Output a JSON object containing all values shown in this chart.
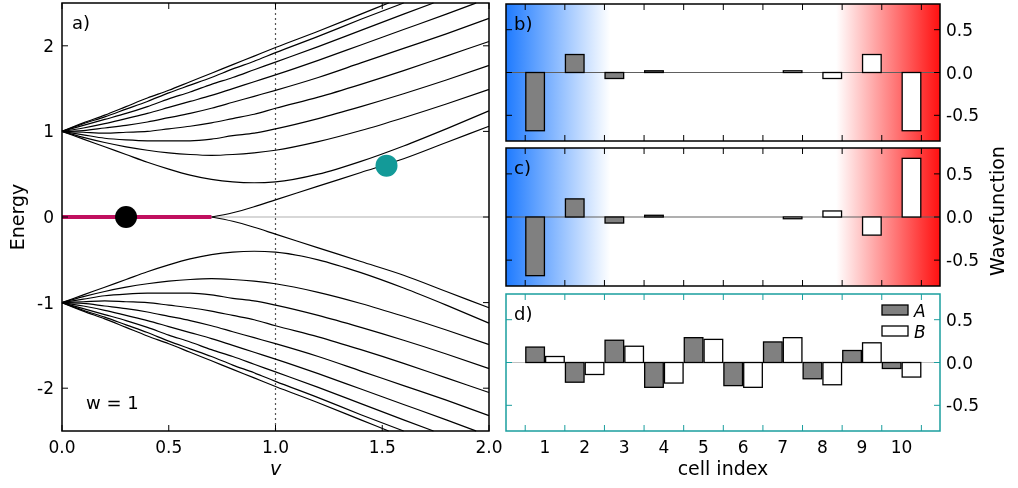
{
  "chart_data": [
    {
      "type": "line",
      "xlabel": "v",
      "ylabel": "Energy",
      "annotations": [
        "a)",
        "w = 1"
      ],
      "xlim": [
        0,
        2
      ],
      "xticks": [
        {
          "value": 0,
          "label": "0.0"
        },
        {
          "value": 0.5,
          "label": "0.5"
        },
        {
          "value": 1,
          "label": "1.0"
        },
        {
          "value": 1.5,
          "label": "1.5"
        },
        {
          "value": 2,
          "label": "2.0"
        }
      ],
      "ylim": [
        -2.5,
        2.5
      ],
      "yticks": [
        -2,
        -1,
        0,
        1,
        2
      ],
      "line_style": "solid",
      "ref_lines": [
        {
          "axis": "y",
          "value": 0,
          "color": "#b0b0b0"
        },
        {
          "axis": "x",
          "value": 1,
          "color": "#555555",
          "line_style": "dotted"
        }
      ],
      "series": [
        {
          "color": "#000000",
          "x": [
            0,
            0.1,
            0.2,
            0.3,
            0.4,
            0.5,
            0.6,
            0.7,
            0.8,
            0.9,
            1,
            1.2,
            1.4,
            1.53
          ],
          "values": [
            1,
            1.1,
            1.19,
            1.29,
            1.39,
            1.48,
            1.58,
            1.68,
            1.78,
            1.88,
            1.98,
            2.17,
            2.37,
            2.5
          ]
        },
        {
          "color": "#000000",
          "x": [
            0,
            0.1,
            0.2,
            0.3,
            0.4,
            0.5,
            0.6,
            0.7,
            0.8,
            0.9,
            1,
            1.2,
            1.4,
            1.6
          ],
          "values": [
            1,
            1.09,
            1.17,
            1.26,
            1.35,
            1.45,
            1.54,
            1.63,
            1.73,
            1.82,
            1.92,
            2.11,
            2.31,
            2.5
          ]
        },
        {
          "color": "#000000",
          "x": [
            0,
            0.1,
            0.2,
            0.3,
            0.4,
            0.5,
            0.6,
            0.7,
            0.8,
            0.9,
            1,
            1.2,
            1.4,
            1.6,
            1.74
          ],
          "values": [
            1,
            1.07,
            1.14,
            1.21,
            1.29,
            1.38,
            1.46,
            1.55,
            1.63,
            1.72,
            1.81,
            1.99,
            2.18,
            2.37,
            2.5
          ]
        },
        {
          "color": "#000000",
          "x": [
            0,
            0.1,
            0.2,
            0.3,
            0.4,
            0.5,
            0.6,
            0.7,
            0.8,
            0.9,
            1,
            1.2,
            1.4,
            1.6,
            1.8,
            1.94
          ],
          "values": [
            1,
            1.04,
            1.09,
            1.15,
            1.21,
            1.28,
            1.35,
            1.42,
            1.5,
            1.58,
            1.66,
            1.83,
            2.01,
            2.19,
            2.37,
            2.5
          ]
        },
        {
          "color": "#000000",
          "x": [
            0,
            0.1,
            0.2,
            0.3,
            0.4,
            0.5,
            0.6,
            0.7,
            0.8,
            0.9,
            1,
            1.2,
            1.4,
            1.6,
            1.8,
            2
          ],
          "values": [
            1,
            1.01,
            1.04,
            1.07,
            1.11,
            1.16,
            1.21,
            1.27,
            1.34,
            1.41,
            1.48,
            1.63,
            1.8,
            1.97,
            2.14,
            2.32
          ]
        },
        {
          "color": "#000000",
          "x": [
            0,
            0.1,
            0.2,
            0.3,
            0.4,
            0.5,
            0.6,
            0.7,
            0.8,
            0.9,
            1,
            1.2,
            1.4,
            1.6,
            1.8,
            2
          ],
          "values": [
            1,
            0.99,
            0.98,
            0.99,
            1,
            1.03,
            1.06,
            1.1,
            1.15,
            1.2,
            1.27,
            1.4,
            1.55,
            1.71,
            1.88,
            2.05
          ]
        },
        {
          "color": "#000000",
          "x": [
            0,
            0.1,
            0.2,
            0.3,
            0.4,
            0.5,
            0.6,
            0.7,
            0.8,
            0.9,
            1,
            1.2,
            1.4,
            1.6,
            1.8,
            2
          ],
          "values": [
            1,
            0.96,
            0.92,
            0.9,
            0.89,
            0.89,
            0.89,
            0.91,
            0.95,
            0.98,
            1.03,
            1.15,
            1.29,
            1.44,
            1.6,
            1.77
          ]
        },
        {
          "color": "#000000",
          "x": [
            0,
            0.1,
            0.2,
            0.3,
            0.4,
            0.5,
            0.6,
            0.7,
            0.8,
            0.9,
            1,
            1.2,
            1.4,
            1.6,
            1.8,
            2
          ],
          "values": [
            1,
            0.93,
            0.87,
            0.82,
            0.78,
            0.75,
            0.73,
            0.72,
            0.73,
            0.75,
            0.78,
            0.88,
            1.01,
            1.16,
            1.32,
            1.49
          ]
        },
        {
          "color": "#000000",
          "x": [
            0,
            0.1,
            0.2,
            0.3,
            0.4,
            0.5,
            0.6,
            0.7,
            0.8,
            0.9,
            1,
            1.2,
            1.4,
            1.6,
            1.8,
            2
          ],
          "values": [
            1,
            0.91,
            0.82,
            0.73,
            0.64,
            0.56,
            0.49,
            0.44,
            0.41,
            0.4,
            0.41,
            0.5,
            0.65,
            0.83,
            1.03,
            1.24
          ]
        },
        {
          "color": "#000000",
          "x": [
            0.7,
            0.8,
            0.9,
            1,
            1.2,
            1.4,
            1.6,
            1.8,
            2
          ],
          "values": [
            0,
            0.05,
            0.12,
            0.2,
            0.36,
            0.52,
            0.68,
            0.87,
            1.06
          ]
        },
        {
          "color": "#000000",
          "x": [
            0.7,
            0.8,
            0.9,
            1,
            1.2,
            1.4,
            1.6,
            1.8,
            2
          ],
          "values": [
            0,
            -0.05,
            -0.12,
            -0.2,
            -0.36,
            -0.52,
            -0.68,
            -0.87,
            -1.06
          ]
        },
        {
          "color": "#000000",
          "x": [
            0,
            0.1,
            0.2,
            0.3,
            0.4,
            0.5,
            0.6,
            0.7,
            0.8,
            0.9,
            1,
            1.2,
            1.4,
            1.6,
            1.8,
            2
          ],
          "values": [
            -1,
            -0.91,
            -0.82,
            -0.73,
            -0.64,
            -0.56,
            -0.49,
            -0.44,
            -0.41,
            -0.4,
            -0.41,
            -0.5,
            -0.65,
            -0.83,
            -1.03,
            -1.24
          ]
        },
        {
          "color": "#000000",
          "x": [
            0,
            0.1,
            0.2,
            0.3,
            0.4,
            0.5,
            0.6,
            0.7,
            0.8,
            0.9,
            1,
            1.2,
            1.4,
            1.6,
            1.8,
            2
          ],
          "values": [
            -1,
            -0.93,
            -0.87,
            -0.82,
            -0.78,
            -0.75,
            -0.73,
            -0.72,
            -0.73,
            -0.75,
            -0.78,
            -0.88,
            -1.01,
            -1.16,
            -1.32,
            -1.49
          ]
        },
        {
          "color": "#000000",
          "x": [
            0,
            0.1,
            0.2,
            0.3,
            0.4,
            0.5,
            0.6,
            0.7,
            0.8,
            0.9,
            1,
            1.2,
            1.4,
            1.6,
            1.8,
            2
          ],
          "values": [
            -1,
            -0.96,
            -0.92,
            -0.9,
            -0.89,
            -0.89,
            -0.89,
            -0.91,
            -0.95,
            -0.98,
            -1.03,
            -1.15,
            -1.29,
            -1.44,
            -1.6,
            -1.77
          ]
        },
        {
          "color": "#000000",
          "x": [
            0,
            0.1,
            0.2,
            0.3,
            0.4,
            0.5,
            0.6,
            0.7,
            0.8,
            0.9,
            1,
            1.2,
            1.4,
            1.6,
            1.8,
            2
          ],
          "values": [
            -1,
            -0.99,
            -0.98,
            -0.99,
            -1,
            -1.03,
            -1.06,
            -1.1,
            -1.15,
            -1.2,
            -1.27,
            -1.4,
            -1.55,
            -1.71,
            -1.88,
            -2.05
          ]
        },
        {
          "color": "#000000",
          "x": [
            0,
            0.1,
            0.2,
            0.3,
            0.4,
            0.5,
            0.6,
            0.7,
            0.8,
            0.9,
            1,
            1.2,
            1.4,
            1.6,
            1.8,
            2
          ],
          "values": [
            -1,
            -1.01,
            -1.04,
            -1.07,
            -1.11,
            -1.16,
            -1.21,
            -1.27,
            -1.34,
            -1.41,
            -1.48,
            -1.63,
            -1.8,
            -1.97,
            -2.14,
            -2.32
          ]
        },
        {
          "color": "#000000",
          "x": [
            0,
            0.1,
            0.2,
            0.3,
            0.4,
            0.5,
            0.6,
            0.7,
            0.8,
            0.9,
            1,
            1.2,
            1.4,
            1.6,
            1.8,
            1.94
          ],
          "values": [
            -1,
            -1.04,
            -1.09,
            -1.15,
            -1.21,
            -1.28,
            -1.35,
            -1.42,
            -1.5,
            -1.58,
            -1.66,
            -1.83,
            -2.01,
            -2.19,
            -2.37,
            -2.5
          ]
        },
        {
          "color": "#000000",
          "x": [
            0,
            0.1,
            0.2,
            0.3,
            0.4,
            0.5,
            0.6,
            0.7,
            0.8,
            0.9,
            1,
            1.2,
            1.4,
            1.6,
            1.74
          ],
          "values": [
            -1,
            -1.07,
            -1.14,
            -1.21,
            -1.29,
            -1.38,
            -1.46,
            -1.55,
            -1.63,
            -1.72,
            -1.81,
            -1.99,
            -2.18,
            -2.37,
            -2.5
          ]
        },
        {
          "color": "#000000",
          "x": [
            0,
            0.1,
            0.2,
            0.3,
            0.4,
            0.5,
            0.6,
            0.7,
            0.8,
            0.9,
            1,
            1.2,
            1.4,
            1.6
          ],
          "values": [
            -1,
            -1.09,
            -1.17,
            -1.26,
            -1.35,
            -1.45,
            -1.54,
            -1.63,
            -1.73,
            -1.82,
            -1.92,
            -2.11,
            -2.31,
            -2.5
          ]
        },
        {
          "color": "#000000",
          "x": [
            0,
            0.1,
            0.2,
            0.3,
            0.4,
            0.5,
            0.6,
            0.7,
            0.8,
            0.9,
            1,
            1.2,
            1.4,
            1.53
          ],
          "values": [
            -1,
            -1.1,
            -1.19,
            -1.29,
            -1.39,
            -1.48,
            -1.58,
            -1.68,
            -1.78,
            -1.88,
            -1.98,
            -2.17,
            -2.37,
            -2.5
          ]
        },
        {
          "color": "#c0105f",
          "x": [
            0,
            0.7
          ],
          "values": [
            0,
            0
          ]
        },
        {
          "type": "scatter",
          "color": "#000000",
          "marker": "circle",
          "x": [
            0.3
          ],
          "values": [
            0
          ]
        },
        {
          "type": "scatter",
          "color": "#139a98",
          "marker": "circle",
          "x": [
            1.52
          ],
          "values": [
            0.6
          ]
        }
      ]
    },
    {
      "type": "bar",
      "annotations": [
        "b)"
      ],
      "categories": [
        null,
        null,
        null,
        null,
        null,
        null,
        null,
        null,
        null,
        null
      ],
      "tick_labels": "y",
      "ylim": [
        -0.8,
        0.8
      ],
      "yticks": [
        {
          "value": -0.5,
          "label": "-0.5"
        },
        {
          "value": 0,
          "label": "0.0"
        },
        {
          "value": 0.5,
          "label": "0.5"
        }
      ],
      "ref_lines": [
        {
          "axis": "y",
          "value": 0,
          "color": "#606060"
        }
      ],
      "series": [
        {
          "color": "#808080",
          "values": [
            -0.68,
            0.21,
            -0.07,
            0.02,
            0,
            0,
            0,
            0,
            0,
            0
          ]
        },
        {
          "color": "#ffffff",
          "values": [
            0,
            0,
            0,
            0,
            0,
            0,
            0.02,
            -0.07,
            0.21,
            -0.68
          ]
        }
      ]
    },
    {
      "type": "bar",
      "annotations": [
        "c)"
      ],
      "ylabel": "Wavefunction",
      "categories": [
        null,
        null,
        null,
        null,
        null,
        null,
        null,
        null,
        null,
        null
      ],
      "tick_labels": "y",
      "ylim": [
        -0.8,
        0.8
      ],
      "yticks": [
        {
          "value": -0.5,
          "label": "-0.5"
        },
        {
          "value": 0,
          "label": "0.0"
        },
        {
          "value": 0.5,
          "label": "0.5"
        }
      ],
      "ref_lines": [
        {
          "axis": "y",
          "value": 0,
          "color": "#606060"
        }
      ],
      "series": [
        {
          "color": "#808080",
          "values": [
            -0.68,
            0.21,
            -0.07,
            0.02,
            0,
            0,
            0,
            0,
            0,
            0
          ]
        },
        {
          "color": "#ffffff",
          "values": [
            0,
            0,
            0,
            0,
            0,
            0,
            -0.02,
            0.07,
            -0.21,
            0.68
          ]
        }
      ]
    },
    {
      "type": "bar",
      "annotations": [
        "d)"
      ],
      "xlabel": "cell index",
      "categories": [
        "1",
        "2",
        "3",
        "4",
        "5",
        "6",
        "7",
        "8",
        "9",
        "10"
      ],
      "ylim": [
        -0.8,
        0.8
      ],
      "yticks": [
        {
          "value": -0.5,
          "label": "-0.5"
        },
        {
          "value": 0,
          "label": "0.0"
        },
        {
          "value": 0.5,
          "label": "0.5"
        }
      ],
      "legend": "top right",
      "ref_lines": [
        {
          "axis": "y",
          "value": 0,
          "color": "#c0c0c0"
        }
      ],
      "series": [
        {
          "name": "A",
          "color": "#808080",
          "values": [
            0.18,
            -0.23,
            0.26,
            -0.29,
            0.29,
            -0.27,
            0.24,
            -0.19,
            0.14,
            -0.07
          ]
        },
        {
          "name": "B",
          "color": "#ffffff",
          "values": [
            0.07,
            -0.14,
            0.19,
            -0.24,
            0.27,
            -0.29,
            0.29,
            -0.26,
            0.23,
            -0.17
          ]
        }
      ]
    }
  ]
}
